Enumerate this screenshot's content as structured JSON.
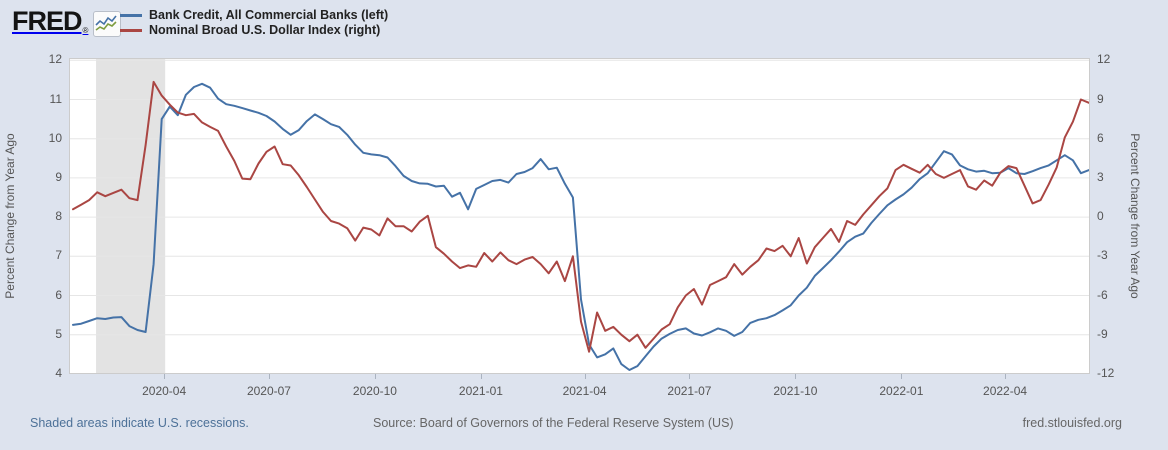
{
  "header": {
    "logo_text": "FRED",
    "logo_reg": "®",
    "legend": [
      {
        "label": "Bank Credit, All Commercial Banks (left)",
        "color": "#4572a7"
      },
      {
        "label": "Nominal Broad U.S. Dollar Index (right)",
        "color": "#aa4643"
      }
    ]
  },
  "footer": {
    "recession_note": "Shaded areas indicate U.S. recessions.",
    "source": "Source: Board of Governors of the Federal Reserve System (US)",
    "site": "fred.stlouisfed.org"
  },
  "chart_data": {
    "type": "line",
    "grid": true,
    "legend_position": "top-left",
    "grid_color": "#e6e6e6",
    "recession_color": "#e3e3e3",
    "left_axis": {
      "title": "Percent Change from Year Ago",
      "min": 4,
      "max": 12,
      "ticks": [
        12,
        11,
        10,
        9,
        8,
        7,
        6,
        5,
        4
      ]
    },
    "right_axis": {
      "title": "Percent Change from Year Ago",
      "min": -12,
      "max": 12,
      "ticks": [
        12,
        9,
        6,
        3,
        0,
        -3,
        -6,
        -9,
        -12
      ]
    },
    "x_axis": {
      "total_days": 882,
      "ticks": [
        {
          "label": "2020-04",
          "day": 80
        },
        {
          "label": "2020-07",
          "day": 171
        },
        {
          "label": "2020-10",
          "day": 263
        },
        {
          "label": "2021-01",
          "day": 355
        },
        {
          "label": "2021-04",
          "day": 445
        },
        {
          "label": "2021-07",
          "day": 536
        },
        {
          "label": "2021-10",
          "day": 628
        },
        {
          "label": "2022-01",
          "day": 720
        },
        {
          "label": "2022-04",
          "day": 810
        }
      ]
    },
    "recession_bands": [
      {
        "start_day": 20,
        "end_day": 80
      }
    ],
    "series": [
      {
        "name": "Bank Credit, All Commercial Banks",
        "axis": "left",
        "color": "#4572a7",
        "values": [
          5.25,
          5.28,
          5.35,
          5.42,
          5.4,
          5.44,
          5.45,
          5.22,
          5.12,
          5.07,
          6.8,
          10.5,
          10.82,
          10.6,
          11.12,
          11.32,
          11.4,
          11.3,
          11.02,
          10.88,
          10.84,
          10.78,
          10.72,
          10.66,
          10.58,
          10.44,
          10.25,
          10.1,
          10.22,
          10.45,
          10.62,
          10.5,
          10.37,
          10.3,
          10.1,
          9.85,
          9.64,
          9.6,
          9.58,
          9.52,
          9.3,
          9.05,
          8.92,
          8.86,
          8.85,
          8.78,
          8.8,
          8.52,
          8.62,
          8.2,
          8.72,
          8.82,
          8.92,
          8.95,
          8.88,
          9.1,
          9.15,
          9.25,
          9.48,
          9.22,
          9.26,
          8.85,
          8.5,
          5.9,
          4.75,
          4.42,
          4.5,
          4.65,
          4.25,
          4.1,
          4.2,
          4.45,
          4.7,
          4.9,
          5.02,
          5.12,
          5.16,
          5.03,
          4.98,
          5.06,
          5.16,
          5.1,
          4.97,
          5.07,
          5.3,
          5.38,
          5.42,
          5.5,
          5.62,
          5.75,
          6.0,
          6.2,
          6.5,
          6.7,
          6.9,
          7.12,
          7.36,
          7.5,
          7.58,
          7.85,
          8.08,
          8.3,
          8.45,
          8.58,
          8.75,
          8.97,
          9.12,
          9.4,
          9.68,
          9.6,
          9.32,
          9.22,
          9.16,
          9.18,
          9.12,
          9.13,
          9.25,
          9.12,
          9.1,
          9.17,
          9.25,
          9.32,
          9.45,
          9.58,
          9.45,
          9.12,
          9.2
        ]
      },
      {
        "name": "Nominal Broad U.S. Dollar Index",
        "axis": "right",
        "color": "#aa4643",
        "values": [
          0.6,
          0.95,
          1.3,
          1.9,
          1.6,
          1.85,
          2.1,
          1.45,
          1.3,
          5.5,
          10.35,
          9.3,
          8.6,
          8.0,
          7.8,
          7.9,
          7.25,
          6.9,
          6.6,
          5.4,
          4.3,
          2.95,
          2.9,
          4.1,
          5.0,
          5.4,
          4.05,
          3.95,
          3.2,
          2.3,
          1.35,
          0.4,
          -0.3,
          -0.5,
          -0.85,
          -1.8,
          -0.8,
          -0.95,
          -1.4,
          -0.1,
          -0.7,
          -0.7,
          -1.1,
          -0.35,
          0.1,
          -2.3,
          -2.8,
          -3.4,
          -3.9,
          -3.7,
          -3.8,
          -2.75,
          -3.4,
          -2.7,
          -3.3,
          -3.6,
          -3.25,
          -3.05,
          -3.6,
          -4.3,
          -3.4,
          -4.9,
          -3.0,
          -8.0,
          -10.3,
          -7.3,
          -8.7,
          -8.4,
          -9.0,
          -9.5,
          -9.0,
          -10.0,
          -9.3,
          -8.6,
          -8.2,
          -6.9,
          -6.0,
          -5.5,
          -6.7,
          -5.2,
          -4.9,
          -4.6,
          -3.6,
          -4.4,
          -3.8,
          -3.3,
          -2.4,
          -2.6,
          -2.2,
          -3.0,
          -1.6,
          -3.55,
          -2.3,
          -1.6,
          -0.9,
          -1.9,
          -0.3,
          -0.6,
          0.2,
          0.9,
          1.6,
          2.2,
          3.6,
          4.0,
          3.7,
          3.4,
          4.0,
          3.3,
          3.0,
          3.3,
          3.6,
          2.35,
          2.1,
          2.8,
          2.4,
          3.4,
          3.9,
          3.75,
          2.4,
          1.05,
          1.3,
          2.5,
          3.8,
          6.1,
          7.3,
          9.0,
          8.75
        ]
      }
    ]
  }
}
